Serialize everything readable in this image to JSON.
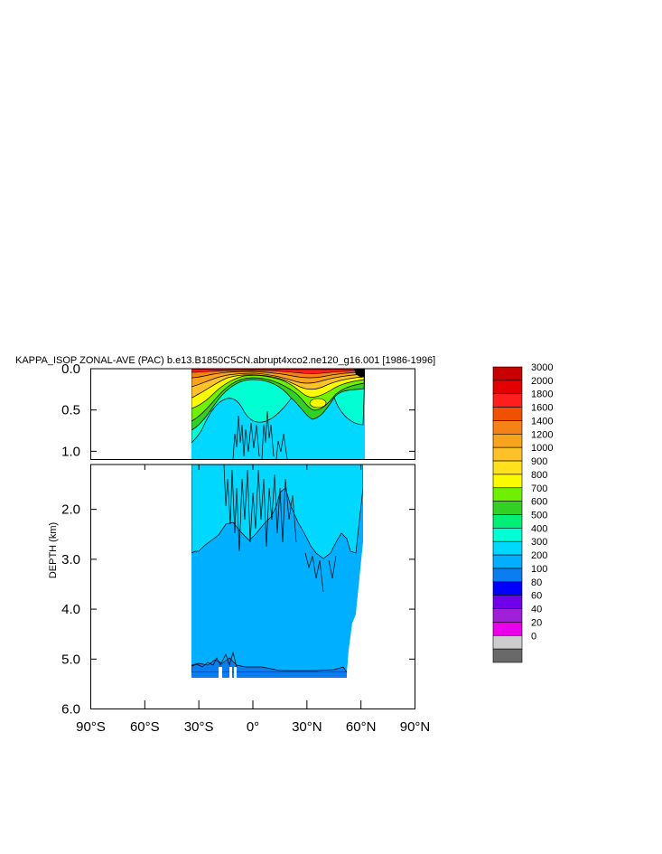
{
  "chart_data": {
    "type": "heatmap",
    "title": "KAPPA_ISOP ZONAL-AVE (PAC) b.e13.B1850C5CN.abrupt4xco2.ne120_g16.001 [1986-1996]",
    "ylabel": "DEPTH (km)",
    "xlabel": "",
    "xlim": [
      -90,
      90
    ],
    "x_ticks": [
      {
        "value": -90,
        "label": "90°S"
      },
      {
        "value": -60,
        "label": "60°S"
      },
      {
        "value": -30,
        "label": "30°S"
      },
      {
        "value": 0,
        "label": "0°"
      },
      {
        "value": 30,
        "label": "30°N"
      },
      {
        "value": 60,
        "label": "60°N"
      },
      {
        "value": 90,
        "label": "90°N"
      }
    ],
    "upper_panel": {
      "ylim": [
        0.0,
        1.1
      ],
      "y_ticks": [
        {
          "value": 0.0,
          "label": "0.0"
        },
        {
          "value": 0.5,
          "label": "0.5"
        },
        {
          "value": 1.0,
          "label": "1.0"
        }
      ]
    },
    "lower_panel": {
      "ylim": [
        1.1,
        6.0
      ],
      "y_ticks": [
        {
          "value": 2.0,
          "label": "2.0"
        },
        {
          "value": 3.0,
          "label": "3.0"
        },
        {
          "value": 4.0,
          "label": "4.0"
        },
        {
          "value": 5.0,
          "label": "5.0"
        },
        {
          "value": 6.0,
          "label": "6.0"
        }
      ]
    },
    "colorbar": {
      "levels": [
        "3000",
        "2000",
        "1800",
        "1600",
        "1400",
        "1200",
        "1000",
        "900",
        "800",
        "700",
        "600",
        "500",
        "400",
        "300",
        "200",
        "100",
        "80",
        "60",
        "40",
        "20",
        "0"
      ],
      "colors": [
        "#c80000",
        "#e40000",
        "#ff1e1e",
        "#f05000",
        "#f58217",
        "#f7a31c",
        "#fdc22a",
        "#ffe11c",
        "#fbfb00",
        "#6ef000",
        "#32d024",
        "#00ef76",
        "#00ffd2",
        "#00d8ff",
        "#00afff",
        "#0a7df0",
        "#0000ff",
        "#6f00e9",
        "#a01fd8",
        "#ea00ea",
        "#cdcdcd",
        "#696969"
      ]
    },
    "data_extent": {
      "lat_min": -35,
      "lat_max": 62,
      "bottom_depth_km": 5.4
    },
    "grid": false
  }
}
